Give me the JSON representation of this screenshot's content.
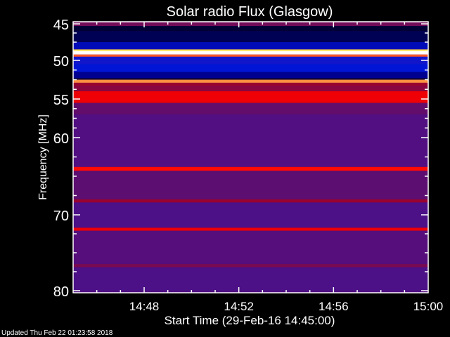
{
  "chart_data": {
    "type": "heatmap",
    "title": "Solar radio Flux (Glasgow)",
    "xlabel": "Start Time (29-Feb-16 14:45:00)",
    "ylabel": "Frequency [MHz]",
    "xlim": [
      "14:45",
      "15:00"
    ],
    "ylim": [
      45,
      80
    ],
    "x_tick_labels": [
      "14:48",
      "14:52",
      "14:56",
      "15:00"
    ],
    "x_ticks_min": [
      3,
      7,
      11,
      15
    ],
    "y_tick_labels": [
      "45",
      "50",
      "55",
      "60",
      "70",
      "80"
    ],
    "y_ticks": [
      45,
      50,
      55,
      60,
      70,
      80
    ],
    "colormap": [
      [
        0.0,
        "#000000"
      ],
      [
        0.12,
        "#000040"
      ],
      [
        0.2,
        "#000090"
      ],
      [
        0.28,
        "#0018e0"
      ],
      [
        0.36,
        "#48108c"
      ],
      [
        0.44,
        "#6a0c60"
      ],
      [
        0.52,
        "#a80020"
      ],
      [
        0.62,
        "#ff0000"
      ],
      [
        0.75,
        "#ff9040"
      ],
      [
        0.87,
        "#ffe040"
      ],
      [
        1.0,
        "#ffffff"
      ]
    ],
    "frequency_profile": [
      {
        "from": 45.0,
        "to": 45.3,
        "level": 0.45
      },
      {
        "from": 45.3,
        "to": 46.0,
        "level": 0.1
      },
      {
        "from": 46.0,
        "to": 47.5,
        "level": 0.14
      },
      {
        "from": 47.5,
        "to": 48.5,
        "level": 0.24
      },
      {
        "from": 48.5,
        "to": 48.7,
        "level": 0.87
      },
      {
        "from": 48.7,
        "to": 49.2,
        "level": 1.0
      },
      {
        "from": 49.2,
        "to": 49.5,
        "level": 0.7
      },
      {
        "from": 49.5,
        "to": 50.5,
        "level": 0.3
      },
      {
        "from": 50.5,
        "to": 51.5,
        "level": 0.27
      },
      {
        "from": 51.5,
        "to": 52.3,
        "level": 0.2
      },
      {
        "from": 52.3,
        "to": 52.5,
        "level": 0.1
      },
      {
        "from": 52.5,
        "to": 52.9,
        "level": 0.75
      },
      {
        "from": 52.9,
        "to": 53.3,
        "level": 0.5
      },
      {
        "from": 53.3,
        "to": 54.0,
        "level": 0.48
      },
      {
        "from": 54.0,
        "to": 55.5,
        "level": 0.6
      },
      {
        "from": 55.5,
        "to": 57.0,
        "level": 0.42
      },
      {
        "from": 57.0,
        "to": 63.8,
        "level": 0.38
      },
      {
        "from": 63.8,
        "to": 64.3,
        "level": 0.63
      },
      {
        "from": 64.3,
        "to": 68.0,
        "level": 0.41
      },
      {
        "from": 68.0,
        "to": 68.4,
        "level": 0.5
      },
      {
        "from": 68.4,
        "to": 71.7,
        "level": 0.37
      },
      {
        "from": 71.7,
        "to": 72.1,
        "level": 0.6
      },
      {
        "from": 72.1,
        "to": 76.5,
        "level": 0.39
      },
      {
        "from": 76.5,
        "to": 76.9,
        "level": 0.46
      },
      {
        "from": 76.9,
        "to": 80.0,
        "level": 0.37
      }
    ]
  },
  "footer": {
    "updated": "Updated Thu Feb 22 01:23:58 2018"
  }
}
